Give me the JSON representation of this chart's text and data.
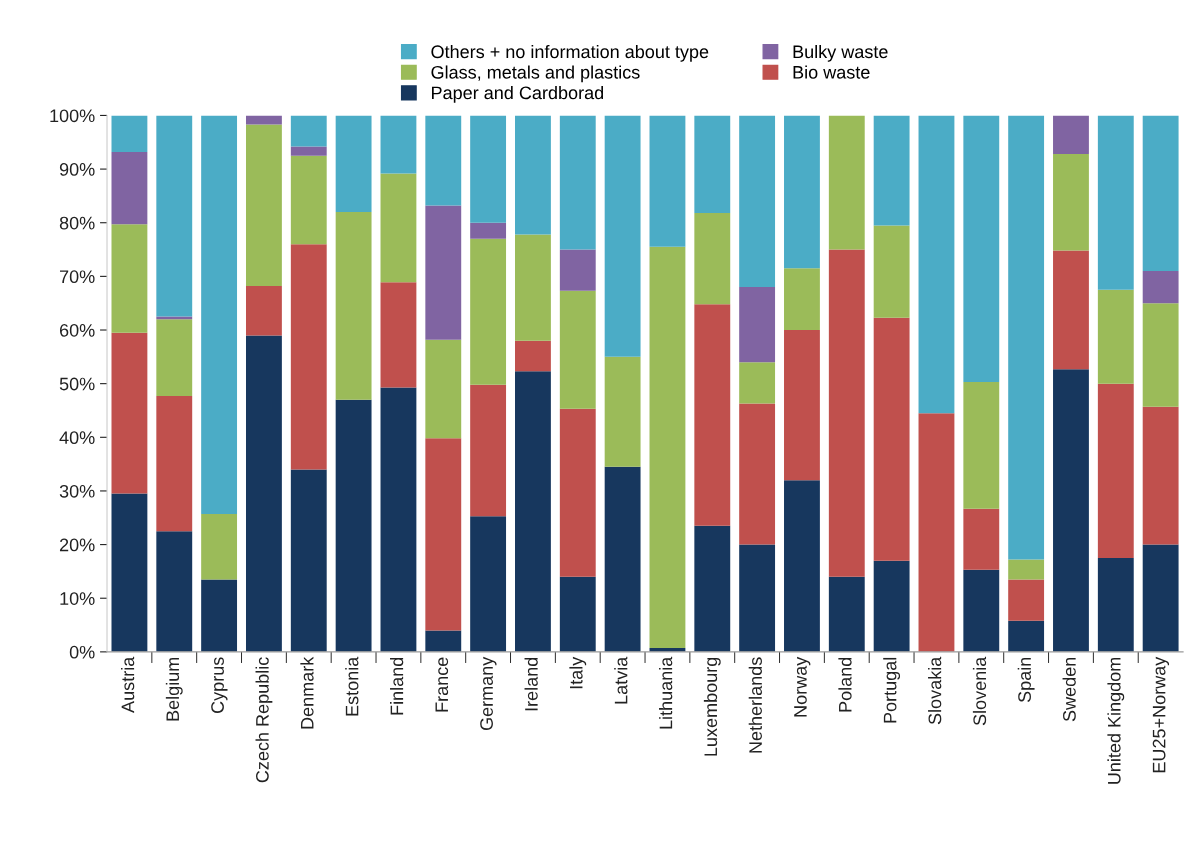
{
  "chart_data": {
    "type": "bar",
    "stacked": true,
    "legend": "top",
    "grid": false,
    "categories": [
      "Austria",
      "Belgium",
      "Cyprus",
      "Czech Republic",
      "Denmark",
      "Estonia",
      "Finland",
      "France",
      "Germany",
      "Ireland",
      "Italy",
      "Latvia",
      "Lithuania",
      "Luxembourg",
      "Netherlands",
      "Norway",
      "Poland",
      "Portugal",
      "Slovakia",
      "Slovenia",
      "Spain",
      "Sweden",
      "United Kingdom",
      "EU25+Norway"
    ],
    "series": [
      {
        "name": "Paper and Cardborad",
        "color": "#17375e",
        "values": [
          29.5,
          22.5,
          13.5,
          59,
          34,
          47,
          49.3,
          4,
          25.3,
          52.3,
          14,
          34.5,
          0.7,
          23.5,
          20,
          32,
          14,
          17,
          0,
          15.3,
          5.8,
          52.7,
          17.5,
          20
        ]
      },
      {
        "name": "Bio waste",
        "color": "#c0504d",
        "values": [
          30,
          25.2,
          0,
          9.2,
          42,
          0,
          19.6,
          35.8,
          24.5,
          5.7,
          31.3,
          0,
          0,
          41.3,
          26.3,
          28,
          61,
          45.3,
          44.5,
          11.4,
          7.7,
          22.1,
          32.5,
          25.7
        ]
      },
      {
        "name": "Glass, metals and plastics",
        "color": "#9bbb59",
        "values": [
          20.2,
          14.3,
          12.2,
          30.1,
          16.5,
          35,
          20.3,
          18.4,
          27.2,
          19.8,
          22,
          20.5,
          74.8,
          17,
          7.7,
          11.5,
          25,
          17.2,
          0,
          23.6,
          3.7,
          18,
          17.5,
          19.3
        ]
      },
      {
        "name": "Bulky waste",
        "color": "#8064a2",
        "values": [
          13.5,
          0.5,
          0,
          1.7,
          1.7,
          0,
          0,
          25,
          3,
          0,
          7.7,
          0,
          0,
          0,
          14,
          0,
          0,
          0,
          0,
          0,
          0,
          7.2,
          0,
          6
        ]
      },
      {
        "name": "Others + no information about type",
        "color": "#4bacc6",
        "values": [
          6.8,
          37.5,
          74.3,
          0,
          5.8,
          18,
          10.8,
          16.8,
          20,
          22.2,
          25,
          45,
          24.5,
          18.2,
          32,
          28.5,
          0,
          20.5,
          55.5,
          49.7,
          82.8,
          0,
          32.5,
          29
        ]
      }
    ],
    "ylim": [
      0,
      100
    ],
    "yticks": [
      {
        "value": 0,
        "label": "0%"
      },
      {
        "value": 10,
        "label": "10%"
      },
      {
        "value": 20,
        "label": "20%"
      },
      {
        "value": 30,
        "label": "30%"
      },
      {
        "value": 40,
        "label": "40%"
      },
      {
        "value": 50,
        "label": "50%"
      },
      {
        "value": 60,
        "label": "60%"
      },
      {
        "value": 70,
        "label": "70%"
      },
      {
        "value": 80,
        "label": "80%"
      },
      {
        "value": 90,
        "label": "90%"
      },
      {
        "value": 100,
        "label": "100%"
      }
    ]
  }
}
